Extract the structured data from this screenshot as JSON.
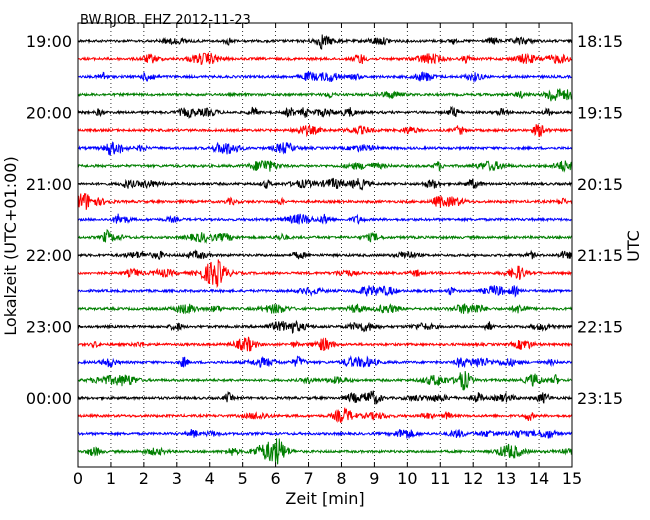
{
  "chart_data": {
    "type": "line",
    "title": "BW.RJOB..EHZ 2012-11-23",
    "xlabel": "Zeit  [min]",
    "ylabel_left": "Lokalzeit (UTC+01:00)",
    "ylabel_right": "UTC",
    "x_ticks": [
      "0",
      "1",
      "2",
      "3",
      "4",
      "5",
      "6",
      "7",
      "8",
      "9",
      "10",
      "11",
      "12",
      "13",
      "14",
      "15"
    ],
    "xlim": [
      0,
      15
    ],
    "left_time_labels": [
      "19:00",
      "20:00",
      "21:00",
      "22:00",
      "23:00",
      "00:00"
    ],
    "right_time_labels": [
      "18:15",
      "19:15",
      "20:15",
      "21:15",
      "22:15",
      "23:15"
    ],
    "track_count": 24,
    "tracks_per_hour": 4,
    "track_colors": [
      "#000000",
      "#ff0000",
      "#0000ff",
      "#007f00"
    ],
    "grid": "vertical dotted lines at each minute"
  }
}
